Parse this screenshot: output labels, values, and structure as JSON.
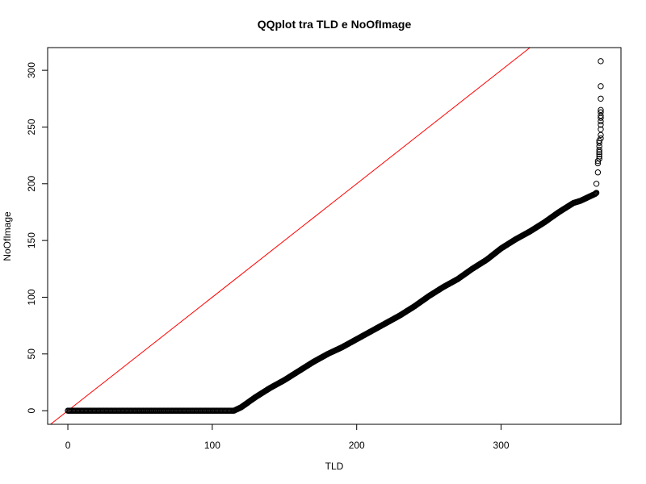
{
  "chart_data": {
    "type": "scatter",
    "title": "QQplot tra TLD e NoOfImage",
    "xlabel": "TLD",
    "ylabel": "NoOfImage",
    "xlim": [
      -14,
      383
    ],
    "ylim": [
      -12,
      320
    ],
    "x_ticks": [
      0,
      100,
      200,
      300
    ],
    "y_ticks": [
      0,
      50,
      100,
      150,
      200,
      250,
      300
    ],
    "grid": false,
    "legend": "none",
    "reference_line": {
      "intercept": 0,
      "slope": 1,
      "color": "#ff0000"
    },
    "point_style": {
      "shape": "open-circle",
      "color": "#000000"
    },
    "curve": {
      "name": "",
      "points": [
        [
          0,
          0
        ],
        [
          115,
          0
        ],
        [
          120,
          3
        ],
        [
          130,
          12
        ],
        [
          140,
          20
        ],
        [
          150,
          27
        ],
        [
          160,
          35
        ],
        [
          170,
          43
        ],
        [
          180,
          50
        ],
        [
          190,
          56
        ],
        [
          200,
          63
        ],
        [
          210,
          70
        ],
        [
          220,
          77
        ],
        [
          230,
          84
        ],
        [
          240,
          92
        ],
        [
          250,
          101
        ],
        [
          260,
          109
        ],
        [
          270,
          116
        ],
        [
          280,
          125
        ],
        [
          290,
          133
        ],
        [
          300,
          143
        ],
        [
          310,
          151
        ],
        [
          320,
          158
        ],
        [
          330,
          166
        ],
        [
          340,
          175
        ],
        [
          345,
          179
        ],
        [
          350,
          183
        ],
        [
          355,
          185
        ],
        [
          360,
          188
        ],
        [
          365,
          191
        ],
        [
          366,
          192
        ]
      ]
    },
    "tail_points": [
      [
        366,
        200
      ],
      [
        367,
        210
      ],
      [
        367,
        218
      ],
      [
        367,
        220
      ],
      [
        368,
        222
      ],
      [
        368,
        224
      ],
      [
        368,
        226
      ],
      [
        368,
        228
      ],
      [
        368,
        230
      ],
      [
        368,
        233
      ],
      [
        368,
        236
      ],
      [
        368,
        238
      ],
      [
        369,
        240
      ],
      [
        369,
        243
      ],
      [
        369,
        248
      ],
      [
        369,
        252
      ],
      [
        369,
        255
      ],
      [
        369,
        258
      ],
      [
        369,
        260
      ],
      [
        369,
        263
      ],
      [
        369,
        265
      ],
      [
        369,
        275
      ],
      [
        369,
        286
      ],
      [
        369,
        308
      ]
    ]
  }
}
